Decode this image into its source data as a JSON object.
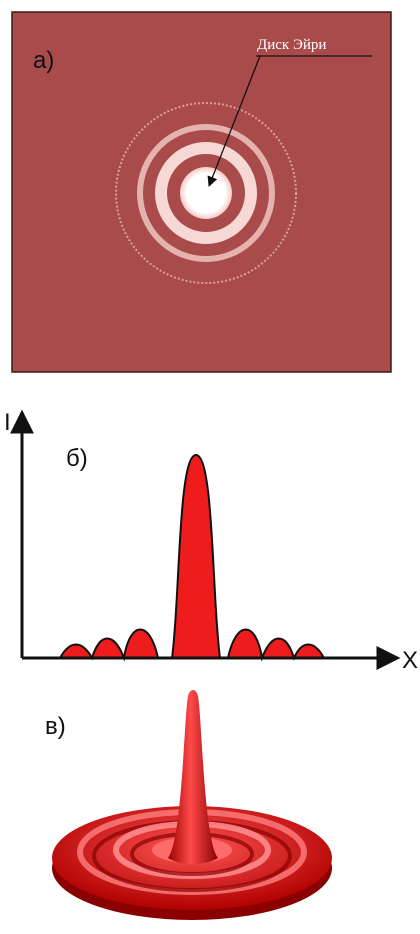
{
  "panels": [
    {
      "label": "а)",
      "annotation": "Диск Эйри"
    },
    {
      "label": "б)",
      "y_axis_label": "I",
      "x_axis_label": "X"
    },
    {
      "label": "в)"
    }
  ]
}
